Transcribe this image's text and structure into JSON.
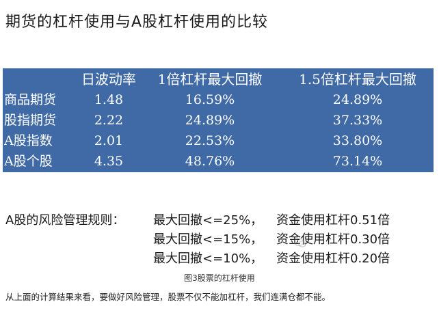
{
  "title": "期货的杠杆使用与A股杠杆使用的比较",
  "table": {
    "headers": [
      "",
      "日波动率",
      "1倍杠杆最大回撤",
      "1.5倍杠杆最大回撤"
    ],
    "rows": [
      [
        "商品期货",
        "1.48",
        "16.59%",
        "24.89%"
      ],
      [
        "股指期货",
        "2.22",
        "24.89%",
        "37.33%"
      ],
      [
        "A股指数",
        "2.01",
        "22.53%",
        "33.80%"
      ],
      [
        "A股个股",
        "4.35",
        "48.76%",
        "73.14%"
      ]
    ]
  },
  "rules": {
    "label": "A股的风险管理规则：",
    "lines": [
      {
        "limit": "最大回撤<=25%，",
        "leverage": "资金使用杠杆0.51倍"
      },
      {
        "limit": "最大回撤<=15%，",
        "leverage": "资金使用杠杆0.30倍"
      },
      {
        "limit": "最大回撤<=10%，",
        "leverage": "资金使用杠杆0.20倍"
      }
    ]
  },
  "caption": "图3股票的杠杆使用",
  "conclusion": "从上面的计算结果来看，要做好风险管理，股票不仅不能加杠杆，我们连满仓都不能。"
}
